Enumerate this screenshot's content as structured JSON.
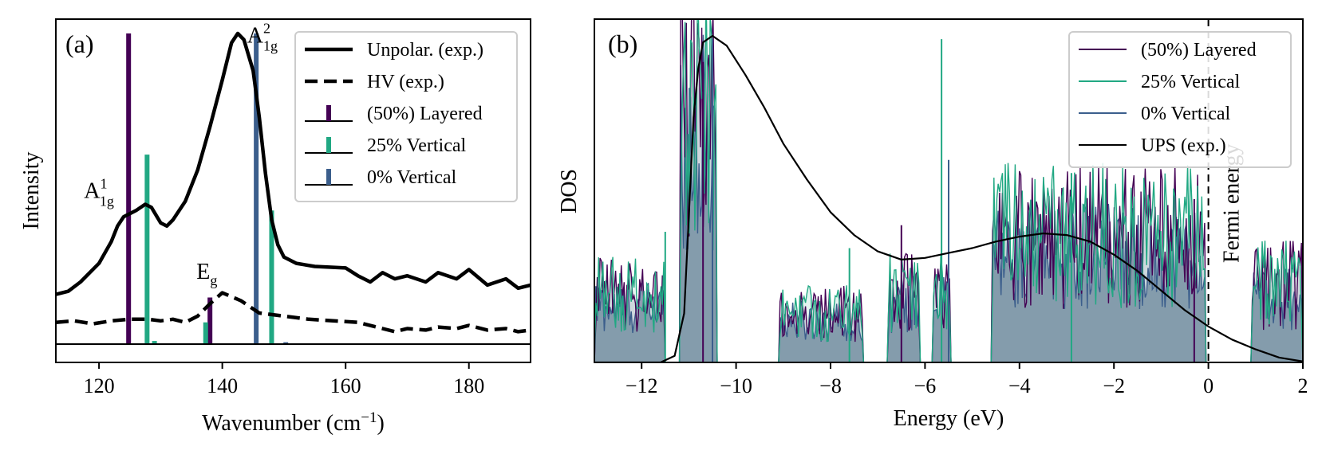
{
  "chart_data": [
    {
      "panel": "(a)",
      "type": "line",
      "xlabel": "Wavenumber (cm",
      "xlabel_sup": "−1",
      "xlabel_end": ")",
      "ylabel": "Intensity",
      "xlim": [
        113,
        190
      ],
      "xticks": [
        120,
        140,
        160,
        180
      ],
      "yticks": [],
      "grid": false,
      "legend_position": "top-right",
      "series": [
        {
          "name": "Unpolar. (exp.)",
          "kind": "line",
          "dash": "solid",
          "color": "#000000",
          "points": [
            [
              113,
              0.16
            ],
            [
              115,
              0.17
            ],
            [
              117,
              0.2
            ],
            [
              120,
              0.26
            ],
            [
              122,
              0.33
            ],
            [
              123,
              0.38
            ],
            [
              124,
              0.41
            ],
            [
              125,
              0.42
            ],
            [
              126,
              0.43
            ],
            [
              127.5,
              0.45
            ],
            [
              128.5,
              0.44
            ],
            [
              130,
              0.39
            ],
            [
              131,
              0.38
            ],
            [
              132,
              0.4
            ],
            [
              134,
              0.46
            ],
            [
              136,
              0.56
            ],
            [
              138,
              0.7
            ],
            [
              140,
              0.85
            ],
            [
              141.5,
              0.97
            ],
            [
              142.5,
              1.0
            ],
            [
              143.5,
              0.98
            ],
            [
              145,
              0.88
            ],
            [
              146,
              0.73
            ],
            [
              147,
              0.55
            ],
            [
              148,
              0.4
            ],
            [
              149,
              0.32
            ],
            [
              150,
              0.28
            ],
            [
              152,
              0.26
            ],
            [
              155,
              0.25
            ],
            [
              160,
              0.245
            ],
            [
              162,
              0.22
            ],
            [
              164,
              0.2
            ],
            [
              166,
              0.23
            ],
            [
              168,
              0.21
            ],
            [
              170,
              0.22
            ],
            [
              173,
              0.2
            ],
            [
              175,
              0.23
            ],
            [
              178,
              0.21
            ],
            [
              180,
              0.24
            ],
            [
              183,
              0.19
            ],
            [
              186,
              0.21
            ],
            [
              188,
              0.18
            ],
            [
              190,
              0.19
            ]
          ]
        },
        {
          "name": "HV (exp.)",
          "kind": "line",
          "dash": "dashed",
          "color": "#000000",
          "points": [
            [
              113,
              0.07
            ],
            [
              116,
              0.075
            ],
            [
              119,
              0.065
            ],
            [
              122,
              0.075
            ],
            [
              125,
              0.08
            ],
            [
              128,
              0.08
            ],
            [
              130,
              0.075
            ],
            [
              132,
              0.08
            ],
            [
              134,
              0.07
            ],
            [
              136,
              0.09
            ],
            [
              138,
              0.13
            ],
            [
              140,
              0.165
            ],
            [
              143,
              0.14
            ],
            [
              146,
              0.1
            ],
            [
              150,
              0.09
            ],
            [
              154,
              0.08
            ],
            [
              158,
              0.075
            ],
            [
              162,
              0.07
            ],
            [
              166,
              0.05
            ],
            [
              168,
              0.04
            ],
            [
              170,
              0.05
            ],
            [
              173,
              0.045
            ],
            [
              175,
              0.055
            ],
            [
              178,
              0.05
            ],
            [
              180,
              0.06
            ],
            [
              183,
              0.045
            ],
            [
              186,
              0.05
            ],
            [
              188,
              0.04
            ],
            [
              190,
              0.045
            ]
          ]
        },
        {
          "name": "(50%) Layered",
          "kind": "sticks",
          "color": "#440154",
          "sticks": [
            [
              124.8,
              1.0
            ],
            [
              138,
              0.15
            ]
          ]
        },
        {
          "name": "25% Vertical",
          "kind": "sticks",
          "color": "#21a883",
          "sticks": [
            [
              127.8,
              0.61
            ],
            [
              129,
              0.01
            ],
            [
              137.3,
              0.07
            ],
            [
              148,
              0.43
            ]
          ]
        },
        {
          "name": "0% Vertical",
          "kind": "sticks",
          "color": "#3b5e8c",
          "sticks": [
            [
              145.5,
              1.0
            ],
            [
              150.3,
              0.006
            ]
          ]
        }
      ],
      "annotations": [
        {
          "base": "A",
          "sup": "1",
          "sub": "1g",
          "x": 120,
          "y": 0.47
        },
        {
          "base": "E",
          "sup": "",
          "sub": "g",
          "x": 137.5,
          "y": 0.21
        },
        {
          "base": "A",
          "sup": "2",
          "sub": "1g",
          "x": 146.5,
          "y": 0.97
        }
      ]
    },
    {
      "panel": "(b)",
      "type": "area",
      "xlabel": "Energy (eV)",
      "ylabel": "DOS",
      "xlim": [
        -13,
        2
      ],
      "xticks": [
        -12,
        -10,
        -8,
        -6,
        -4,
        -2,
        0,
        2
      ],
      "yticks": [],
      "grid": false,
      "legend_position": "top-right",
      "fermi_label": "Fermi energy",
      "fermi_energy": 0,
      "series": [
        {
          "name": "(50%) Layered",
          "kind": "line",
          "color": "#440154"
        },
        {
          "name": "25% Vertical",
          "kind": "line",
          "color": "#21a883"
        },
        {
          "name": "0% Vertical",
          "kind": "line",
          "fill": "#8da3b5",
          "color": "#3b5e8c"
        },
        {
          "name": "UPS (exp.)",
          "kind": "line",
          "color": "#000000",
          "points": [
            [
              -13,
              0.0
            ],
            [
              -11.6,
              0.0
            ],
            [
              -11.3,
              0.02
            ],
            [
              -11.1,
              0.15
            ],
            [
              -11.0,
              0.45
            ],
            [
              -10.9,
              0.75
            ],
            [
              -10.8,
              0.9
            ],
            [
              -10.7,
              0.98
            ],
            [
              -10.5,
              1.0
            ],
            [
              -10.2,
              0.97
            ],
            [
              -9.8,
              0.88
            ],
            [
              -9.4,
              0.78
            ],
            [
              -9.0,
              0.67
            ],
            [
              -8.5,
              0.56
            ],
            [
              -8.0,
              0.46
            ],
            [
              -7.5,
              0.39
            ],
            [
              -7.0,
              0.34
            ],
            [
              -6.5,
              0.315
            ],
            [
              -6.0,
              0.32
            ],
            [
              -5.5,
              0.335
            ],
            [
              -5.0,
              0.35
            ],
            [
              -4.5,
              0.37
            ],
            [
              -4.0,
              0.385
            ],
            [
              -3.5,
              0.395
            ],
            [
              -3.0,
              0.39
            ],
            [
              -2.5,
              0.37
            ],
            [
              -2.0,
              0.33
            ],
            [
              -1.5,
              0.28
            ],
            [
              -1.0,
              0.22
            ],
            [
              -0.5,
              0.16
            ],
            [
              0.0,
              0.11
            ],
            [
              0.5,
              0.07
            ],
            [
              1.0,
              0.04
            ],
            [
              1.5,
              0.015
            ],
            [
              2.0,
              0.003
            ]
          ]
        }
      ],
      "dos_segments": [
        {
          "range": [
            -13.0,
            -11.5
          ],
          "level": 0.19
        },
        {
          "range": [
            -11.2,
            -10.4
          ],
          "level": 0.75
        },
        {
          "range": [
            -9.1,
            -7.3
          ],
          "level": 0.14
        },
        {
          "range": [
            -6.8,
            -6.1
          ],
          "level": 0.2
        },
        {
          "range": [
            -5.85,
            -5.45
          ],
          "level": 0.2
        },
        {
          "range": [
            -4.6,
            -0.05
          ],
          "level": 0.36
        },
        {
          "range": [
            0.9,
            2.0
          ],
          "level": 0.22
        }
      ],
      "dos_spikes": [
        {
          "x": -10.5,
          "series": "0% Vertical",
          "y": 0.99
        },
        {
          "x": -5.65,
          "series": "25% Vertical",
          "y": 0.99
        },
        {
          "x": -5.5,
          "series": "0% Vertical",
          "y": 0.62
        },
        {
          "x": -7.6,
          "series": "25% Vertical",
          "y": 0.35
        },
        {
          "x": -10.7,
          "series": "(50%) Layered",
          "y": 0.92
        },
        {
          "x": -11.5,
          "series": "25% Vertical",
          "y": 0.4
        },
        {
          "x": -6.5,
          "series": "(50%) Layered",
          "y": 0.42
        },
        {
          "x": -2.9,
          "series": "25% Vertical",
          "y": 0.58
        },
        {
          "x": -0.3,
          "series": "(50%) Layered",
          "y": 0.5
        }
      ]
    }
  ]
}
